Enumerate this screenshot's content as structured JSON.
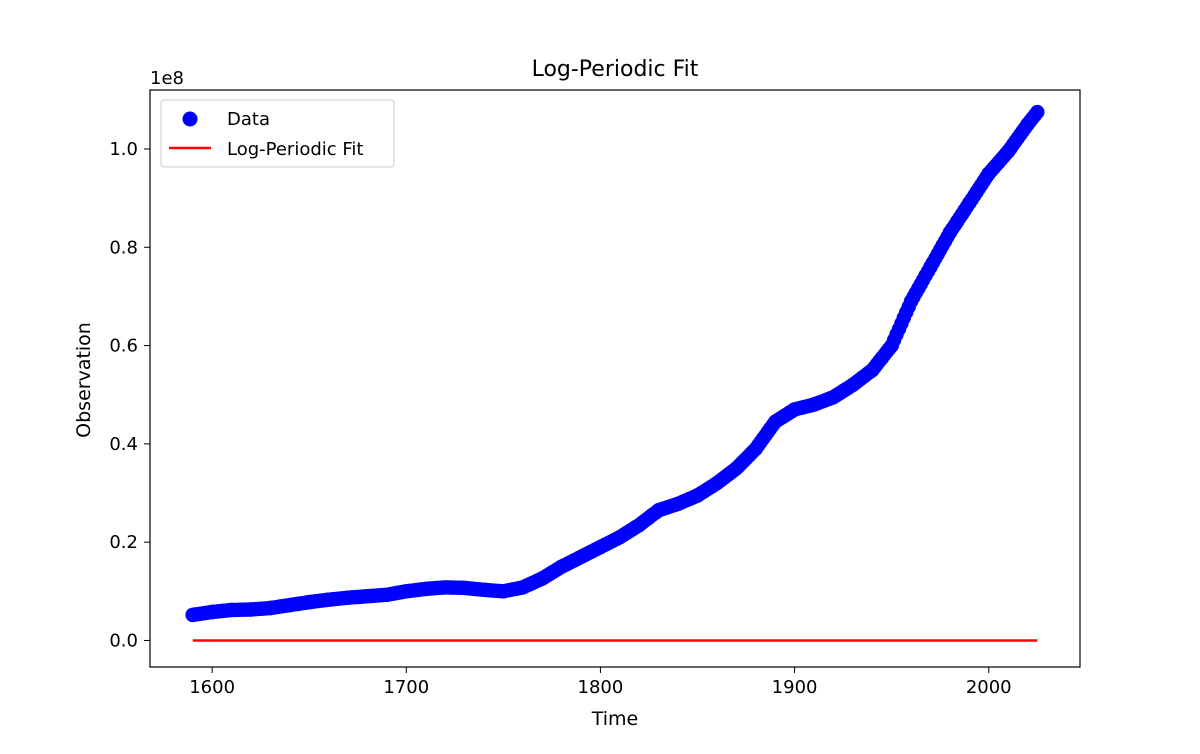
{
  "chart_data": {
    "type": "scatter",
    "title": "Log-Periodic Fit",
    "xlabel": "Time",
    "ylabel": "Observation",
    "y_offset_text": "1e8",
    "xlim": [
      1568,
      2047
    ],
    "ylim": [
      -5400000,
      112000000
    ],
    "x_ticks": [
      1600,
      1700,
      1800,
      1900,
      2000
    ],
    "x_tick_labels": [
      "1600",
      "1700",
      "1800",
      "1900",
      "2000"
    ],
    "y_ticks": [
      0,
      20000000,
      40000000,
      60000000,
      80000000,
      100000000
    ],
    "y_tick_labels": [
      "0.0",
      "0.2",
      "0.4",
      "0.6",
      "0.8",
      "1.0"
    ],
    "grid": false,
    "legend_position": "upper left",
    "legend": [
      {
        "label": "Data",
        "marker": "circle",
        "color": "#0000ff"
      },
      {
        "label": "Log-Periodic Fit",
        "marker": "line",
        "color": "#ff0000"
      }
    ],
    "series": [
      {
        "name": "Data",
        "kind": "scatter",
        "color": "#0000ff",
        "x": [
          1590,
          1600,
          1610,
          1620,
          1630,
          1640,
          1650,
          1660,
          1670,
          1680,
          1690,
          1700,
          1710,
          1720,
          1730,
          1740,
          1750,
          1760,
          1770,
          1780,
          1790,
          1800,
          1810,
          1820,
          1830,
          1840,
          1850,
          1860,
          1870,
          1880,
          1890,
          1900,
          1910,
          1920,
          1930,
          1940,
          1945,
          1950,
          1960,
          1970,
          1980,
          1990,
          2000,
          2010,
          2020,
          2025
        ],
        "y": [
          5200000,
          5800000,
          6200000,
          6300000,
          6600000,
          7200000,
          7800000,
          8300000,
          8700000,
          9000000,
          9300000,
          10000000,
          10500000,
          10800000,
          10700000,
          10300000,
          10000000,
          10800000,
          12600000,
          15000000,
          17000000,
          19000000,
          21000000,
          23500000,
          26500000,
          27800000,
          29500000,
          32000000,
          35000000,
          39000000,
          44500000,
          47000000,
          48000000,
          49500000,
          52000000,
          55000000,
          57500000,
          60000000,
          69000000,
          76000000,
          83000000,
          89000000,
          95000000,
          99500000,
          105000000,
          107500000
        ]
      },
      {
        "name": "Log-Periodic Fit",
        "kind": "line",
        "color": "#ff0000",
        "x": [
          1590,
          2025
        ],
        "y": [
          0,
          0
        ]
      }
    ]
  }
}
